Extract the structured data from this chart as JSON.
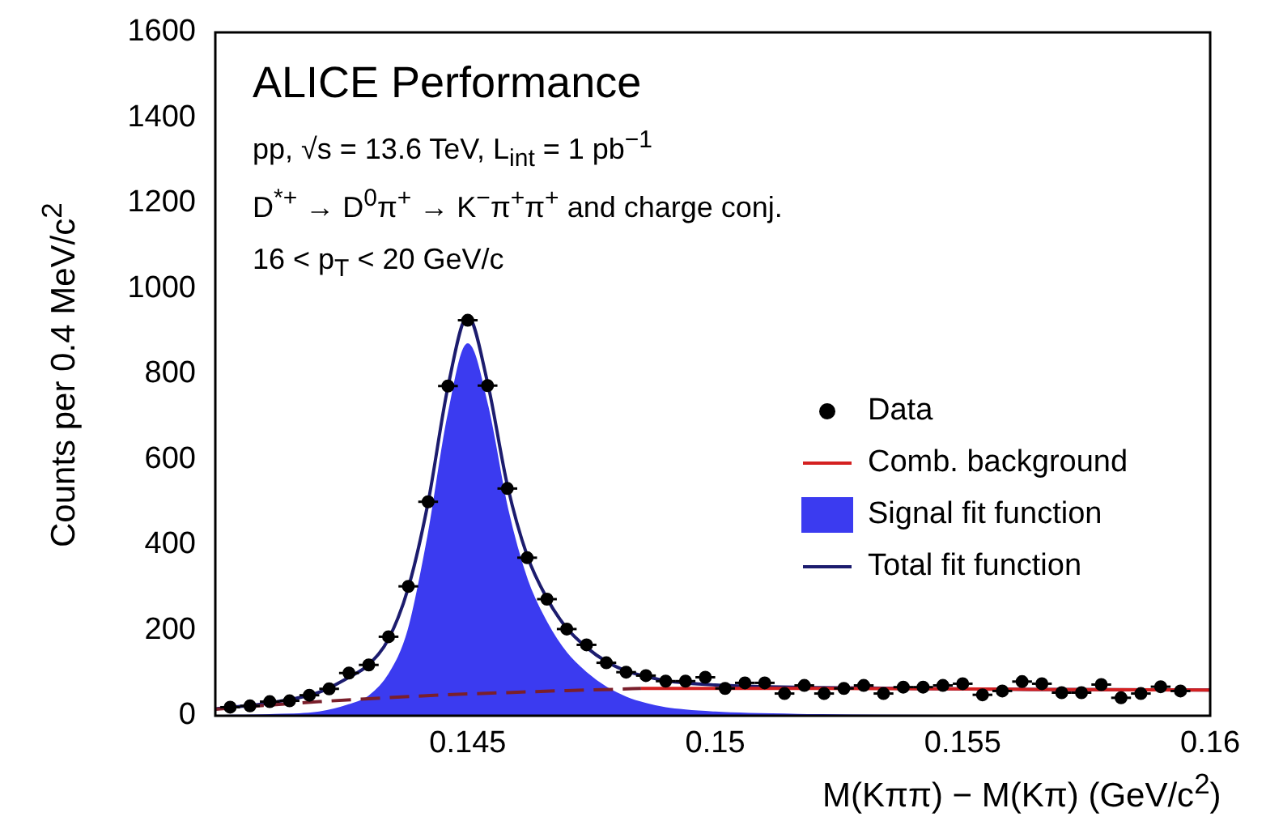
{
  "chart_data": {
    "type": "line",
    "xlabel": "M(Kππ) − M(Kπ) (GeV/c$^{2}$)",
    "ylabel": "Counts per 0.4 MeV/c$^{2}$",
    "annotations": [
      "ALICE Performance",
      "pp, √s = 13.6 TeV, L$_{int}$ = 1 pb$^{−1}$",
      "D$^{*+}$ → D$^{0}$π$^{+}$ → K$^{−}$π$^{+}$π$^{+}$ and charge conj.",
      "16 < p$_{T}$ < 20 GeV/c"
    ],
    "xlim": [
      0.1399,
      0.16
    ],
    "ylim": [
      0,
      1600
    ],
    "xticks": [
      0.145,
      0.15,
      0.155,
      0.16
    ],
    "yticks": [
      0,
      200,
      400,
      600,
      800,
      1000,
      1200,
      1400,
      1600
    ],
    "grid": false,
    "legend": "right",
    "series": [
      {
        "name": "Signal fit function",
        "type": "area",
        "color": "#3b3bf0",
        "x": [
          0.1399,
          0.141,
          0.142,
          0.1426,
          0.143,
          0.1434,
          0.1438,
          0.1442,
          0.1446,
          0.145,
          0.1454,
          0.1458,
          0.1462,
          0.1466,
          0.147,
          0.1474,
          0.1478,
          0.1482,
          0.1486,
          0.149,
          0.15,
          0.152,
          0.155,
          0.16
        ],
        "values": [
          0,
          2,
          8,
          25,
          45,
          95,
          200,
          420,
          700,
          870,
          725,
          485,
          318,
          217,
          146,
          100,
          66,
          43,
          28,
          18,
          8,
          2,
          0,
          0
        ]
      },
      {
        "type": "line",
        "color": "#7a1f2b",
        "line_style": "dashed",
        "x": [
          0.1399,
          0.141,
          0.142,
          0.143,
          0.144,
          0.145,
          0.146,
          0.147,
          0.148,
          0.1485
        ],
        "values": [
          15,
          25,
          33,
          40,
          46,
          51,
          55,
          59,
          62,
          64
        ]
      },
      {
        "name": "Comb. background",
        "type": "line",
        "color": "#d42020",
        "x": [
          0.1485,
          0.152,
          0.156,
          0.16
        ],
        "values": [
          64,
          64,
          62,
          60
        ]
      },
      {
        "name": "Total fit function",
        "type": "line",
        "color": "#1c1c6e",
        "x": [
          0.1399,
          0.141,
          0.142,
          0.1426,
          0.143,
          0.1434,
          0.1438,
          0.1442,
          0.1446,
          0.145,
          0.1454,
          0.1458,
          0.1462,
          0.1466,
          0.147,
          0.1474,
          0.1478,
          0.1482,
          0.1486,
          0.149,
          0.15,
          0.152,
          0.156,
          0.16
        ],
        "values": [
          16,
          30,
          55,
          90,
          120,
          180,
          300,
          500,
          770,
          935,
          780,
          540,
          375,
          275,
          205,
          160,
          127,
          105,
          92,
          82,
          72,
          66,
          62,
          60
        ]
      },
      {
        "name": "Data",
        "type": "scatter",
        "color": "#000000",
        "marker": "circle",
        "x": [
          0.1402,
          0.1406,
          0.141,
          0.1414,
          0.1418,
          0.1422,
          0.1426,
          0.143,
          0.1434,
          0.1438,
          0.1442,
          0.1446,
          0.145,
          0.1454,
          0.1458,
          0.1462,
          0.1466,
          0.147,
          0.1474,
          0.1478,
          0.1482,
          0.1486,
          0.149,
          0.1494,
          0.1498,
          0.1502,
          0.1506,
          0.151,
          0.1514,
          0.1518,
          0.1522,
          0.1526,
          0.153,
          0.1534,
          0.1538,
          0.1542,
          0.1546,
          0.155,
          0.1554,
          0.1558,
          0.1562,
          0.1566,
          0.157,
          0.1574,
          0.1578,
          0.1582,
          0.1586,
          0.159,
          0.1594
        ],
        "values": [
          20,
          23,
          33,
          35,
          48,
          63,
          100,
          119,
          185,
          303,
          501,
          772,
          926,
          773,
          532,
          370,
          273,
          203,
          166,
          124,
          102,
          94,
          81,
          81,
          90,
          64,
          77,
          77,
          52,
          71,
          52,
          64,
          71,
          52,
          67,
          67,
          71,
          75,
          49,
          58,
          80,
          75,
          54,
          54,
          73,
          42,
          52,
          68,
          58
        ],
        "xerrors": [
          0.0002,
          0.0002,
          0.0002,
          0.0002,
          0.0002,
          0.0002,
          0.0002,
          0.0002,
          0.0002,
          0.0002,
          0.0002,
          0.0002,
          0.0002,
          0.0002,
          0.0002,
          0.0002,
          0.0002,
          0.0002,
          0.0002,
          0.0002,
          0.0002,
          0.0002,
          0.0002,
          0.0002,
          0.0002,
          0.0002,
          0.0002,
          0.0002,
          0.0002,
          0.0002,
          0.0002,
          0.0002,
          0.0002,
          0.0002,
          0.0002,
          0.0002,
          0.0002,
          0.0002,
          0.0002,
          0.0002,
          0.0002,
          0.0002,
          0.0002,
          0.0002,
          0.0002,
          0.0002,
          0.0002,
          0.0002,
          0.0002
        ]
      }
    ]
  }
}
